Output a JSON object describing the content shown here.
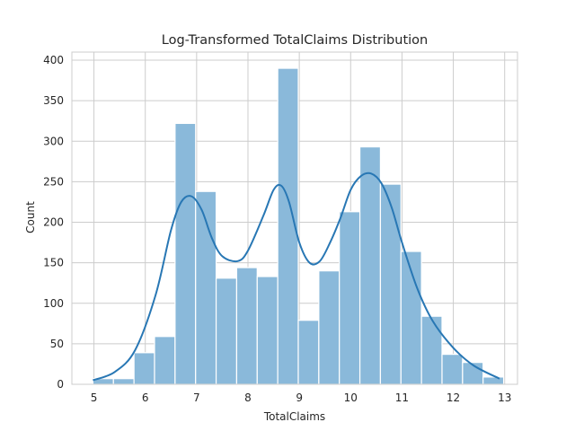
{
  "chart_data": {
    "type": "bar",
    "title": "Log-Transformed TotalClaims Distribution",
    "xlabel": "TotalClaims",
    "ylabel": "Count",
    "xlim": [
      4.57,
      13.25
    ],
    "ylim": [
      0,
      410
    ],
    "xticks": [
      5,
      6,
      7,
      8,
      9,
      10,
      11,
      12,
      13
    ],
    "yticks": [
      0,
      50,
      100,
      150,
      200,
      250,
      300,
      350,
      400
    ],
    "grid": true,
    "bins": [
      {
        "x0": 4.98,
        "x1": 5.38,
        "count": 7
      },
      {
        "x0": 5.38,
        "x1": 5.78,
        "count": 7
      },
      {
        "x0": 5.78,
        "x1": 6.18,
        "count": 39
      },
      {
        "x0": 6.18,
        "x1": 6.58,
        "count": 59
      },
      {
        "x0": 6.58,
        "x1": 6.98,
        "count": 322
      },
      {
        "x0": 6.98,
        "x1": 7.38,
        "count": 238
      },
      {
        "x0": 7.38,
        "x1": 7.78,
        "count": 131
      },
      {
        "x0": 7.78,
        "x1": 8.18,
        "count": 144
      },
      {
        "x0": 8.18,
        "x1": 8.58,
        "count": 133
      },
      {
        "x0": 8.58,
        "x1": 8.98,
        "count": 390
      },
      {
        "x0": 8.98,
        "x1": 9.38,
        "count": 79
      },
      {
        "x0": 9.38,
        "x1": 9.78,
        "count": 140
      },
      {
        "x0": 9.78,
        "x1": 10.18,
        "count": 213
      },
      {
        "x0": 10.18,
        "x1": 10.58,
        "count": 293
      },
      {
        "x0": 10.58,
        "x1": 10.98,
        "count": 247
      },
      {
        "x0": 10.98,
        "x1": 11.38,
        "count": 164
      },
      {
        "x0": 11.38,
        "x1": 11.78,
        "count": 84
      },
      {
        "x0": 11.78,
        "x1": 12.18,
        "count": 37
      },
      {
        "x0": 12.18,
        "x1": 12.58,
        "count": 27
      },
      {
        "x0": 12.58,
        "x1": 12.98,
        "count": 9
      }
    ],
    "kde": {
      "x": [
        4.98,
        5.4,
        5.8,
        6.2,
        6.5,
        6.7,
        6.9,
        7.1,
        7.3,
        7.5,
        7.8,
        8.0,
        8.3,
        8.5,
        8.65,
        8.8,
        9.0,
        9.2,
        9.4,
        9.6,
        9.8,
        10.0,
        10.2,
        10.4,
        10.6,
        10.8,
        11.0,
        11.3,
        11.6,
        12.0,
        12.4,
        12.9
      ],
      "y": [
        5,
        15,
        42,
        110,
        190,
        225,
        232,
        215,
        180,
        158,
        152,
        165,
        208,
        240,
        245,
        225,
        175,
        150,
        152,
        175,
        205,
        240,
        257,
        260,
        248,
        218,
        175,
        118,
        78,
        45,
        23,
        7
      ]
    },
    "colors": {
      "bar_fill": "#8ab9da",
      "bar_stroke": "#ffffff",
      "kde_line": "#2877b4",
      "grid": "#cccccc",
      "text": "#262626"
    }
  }
}
